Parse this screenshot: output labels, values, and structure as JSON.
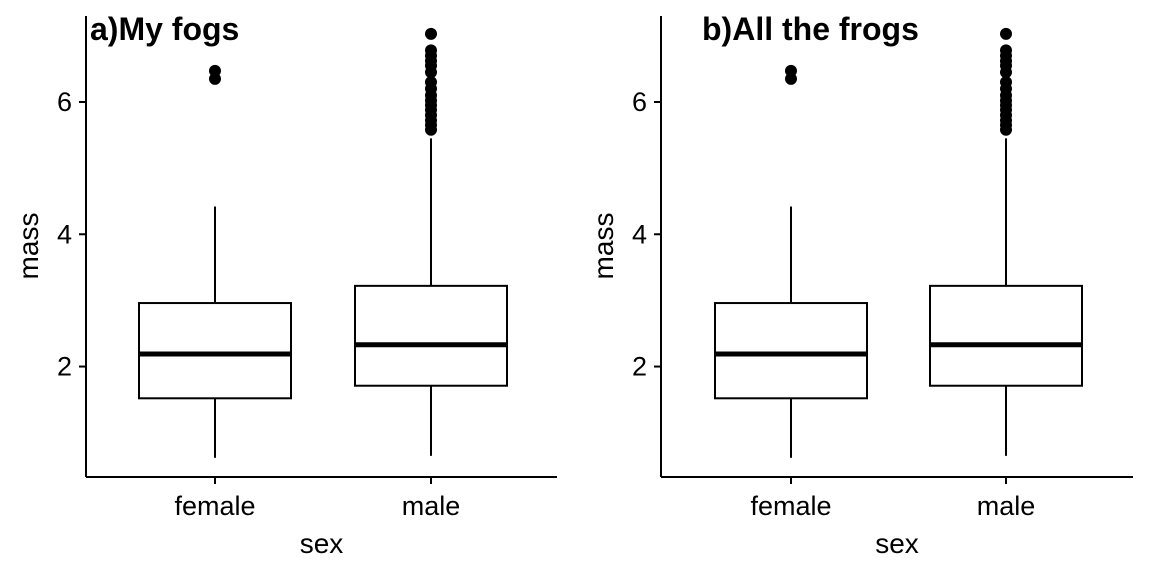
{
  "chart_data": [
    {
      "type": "boxplot",
      "title": "a)My fogs",
      "xlabel": "sex",
      "ylabel": "mass",
      "categories": [
        "female",
        "male"
      ],
      "yticks": [
        2,
        4,
        6
      ],
      "ylim": [
        0.33,
        7.3
      ],
      "boxes": [
        {
          "category": "female",
          "whisker_low": 0.62,
          "q1": 1.52,
          "median": 2.19,
          "q3": 2.96,
          "whisker_high": 4.42,
          "outliers": [
            6.35,
            6.47
          ]
        },
        {
          "category": "male",
          "whisker_low": 0.65,
          "q1": 1.71,
          "median": 2.33,
          "q3": 3.22,
          "whisker_high": 5.45,
          "outliers": [
            5.58,
            5.65,
            5.72,
            5.8,
            5.88,
            5.95,
            6.02,
            6.1,
            6.2,
            6.3,
            6.45,
            6.55,
            6.62,
            6.7,
            6.78,
            7.03
          ]
        }
      ]
    },
    {
      "type": "boxplot",
      "title": "b)All the frogs",
      "xlabel": "sex",
      "ylabel": "mass",
      "categories": [
        "female",
        "male"
      ],
      "yticks": [
        2,
        4,
        6
      ],
      "ylim": [
        0.33,
        7.3
      ],
      "boxes": [
        {
          "category": "female",
          "whisker_low": 0.62,
          "q1": 1.52,
          "median": 2.19,
          "q3": 2.96,
          "whisker_high": 4.42,
          "outliers": [
            6.35,
            6.47
          ]
        },
        {
          "category": "male",
          "whisker_low": 0.65,
          "q1": 1.71,
          "median": 2.33,
          "q3": 3.22,
          "whisker_high": 5.45,
          "outliers": [
            5.58,
            5.65,
            5.72,
            5.8,
            5.88,
            5.95,
            6.02,
            6.1,
            6.2,
            6.3,
            6.45,
            6.55,
            6.62,
            6.7,
            6.78,
            7.03
          ]
        }
      ]
    }
  ]
}
